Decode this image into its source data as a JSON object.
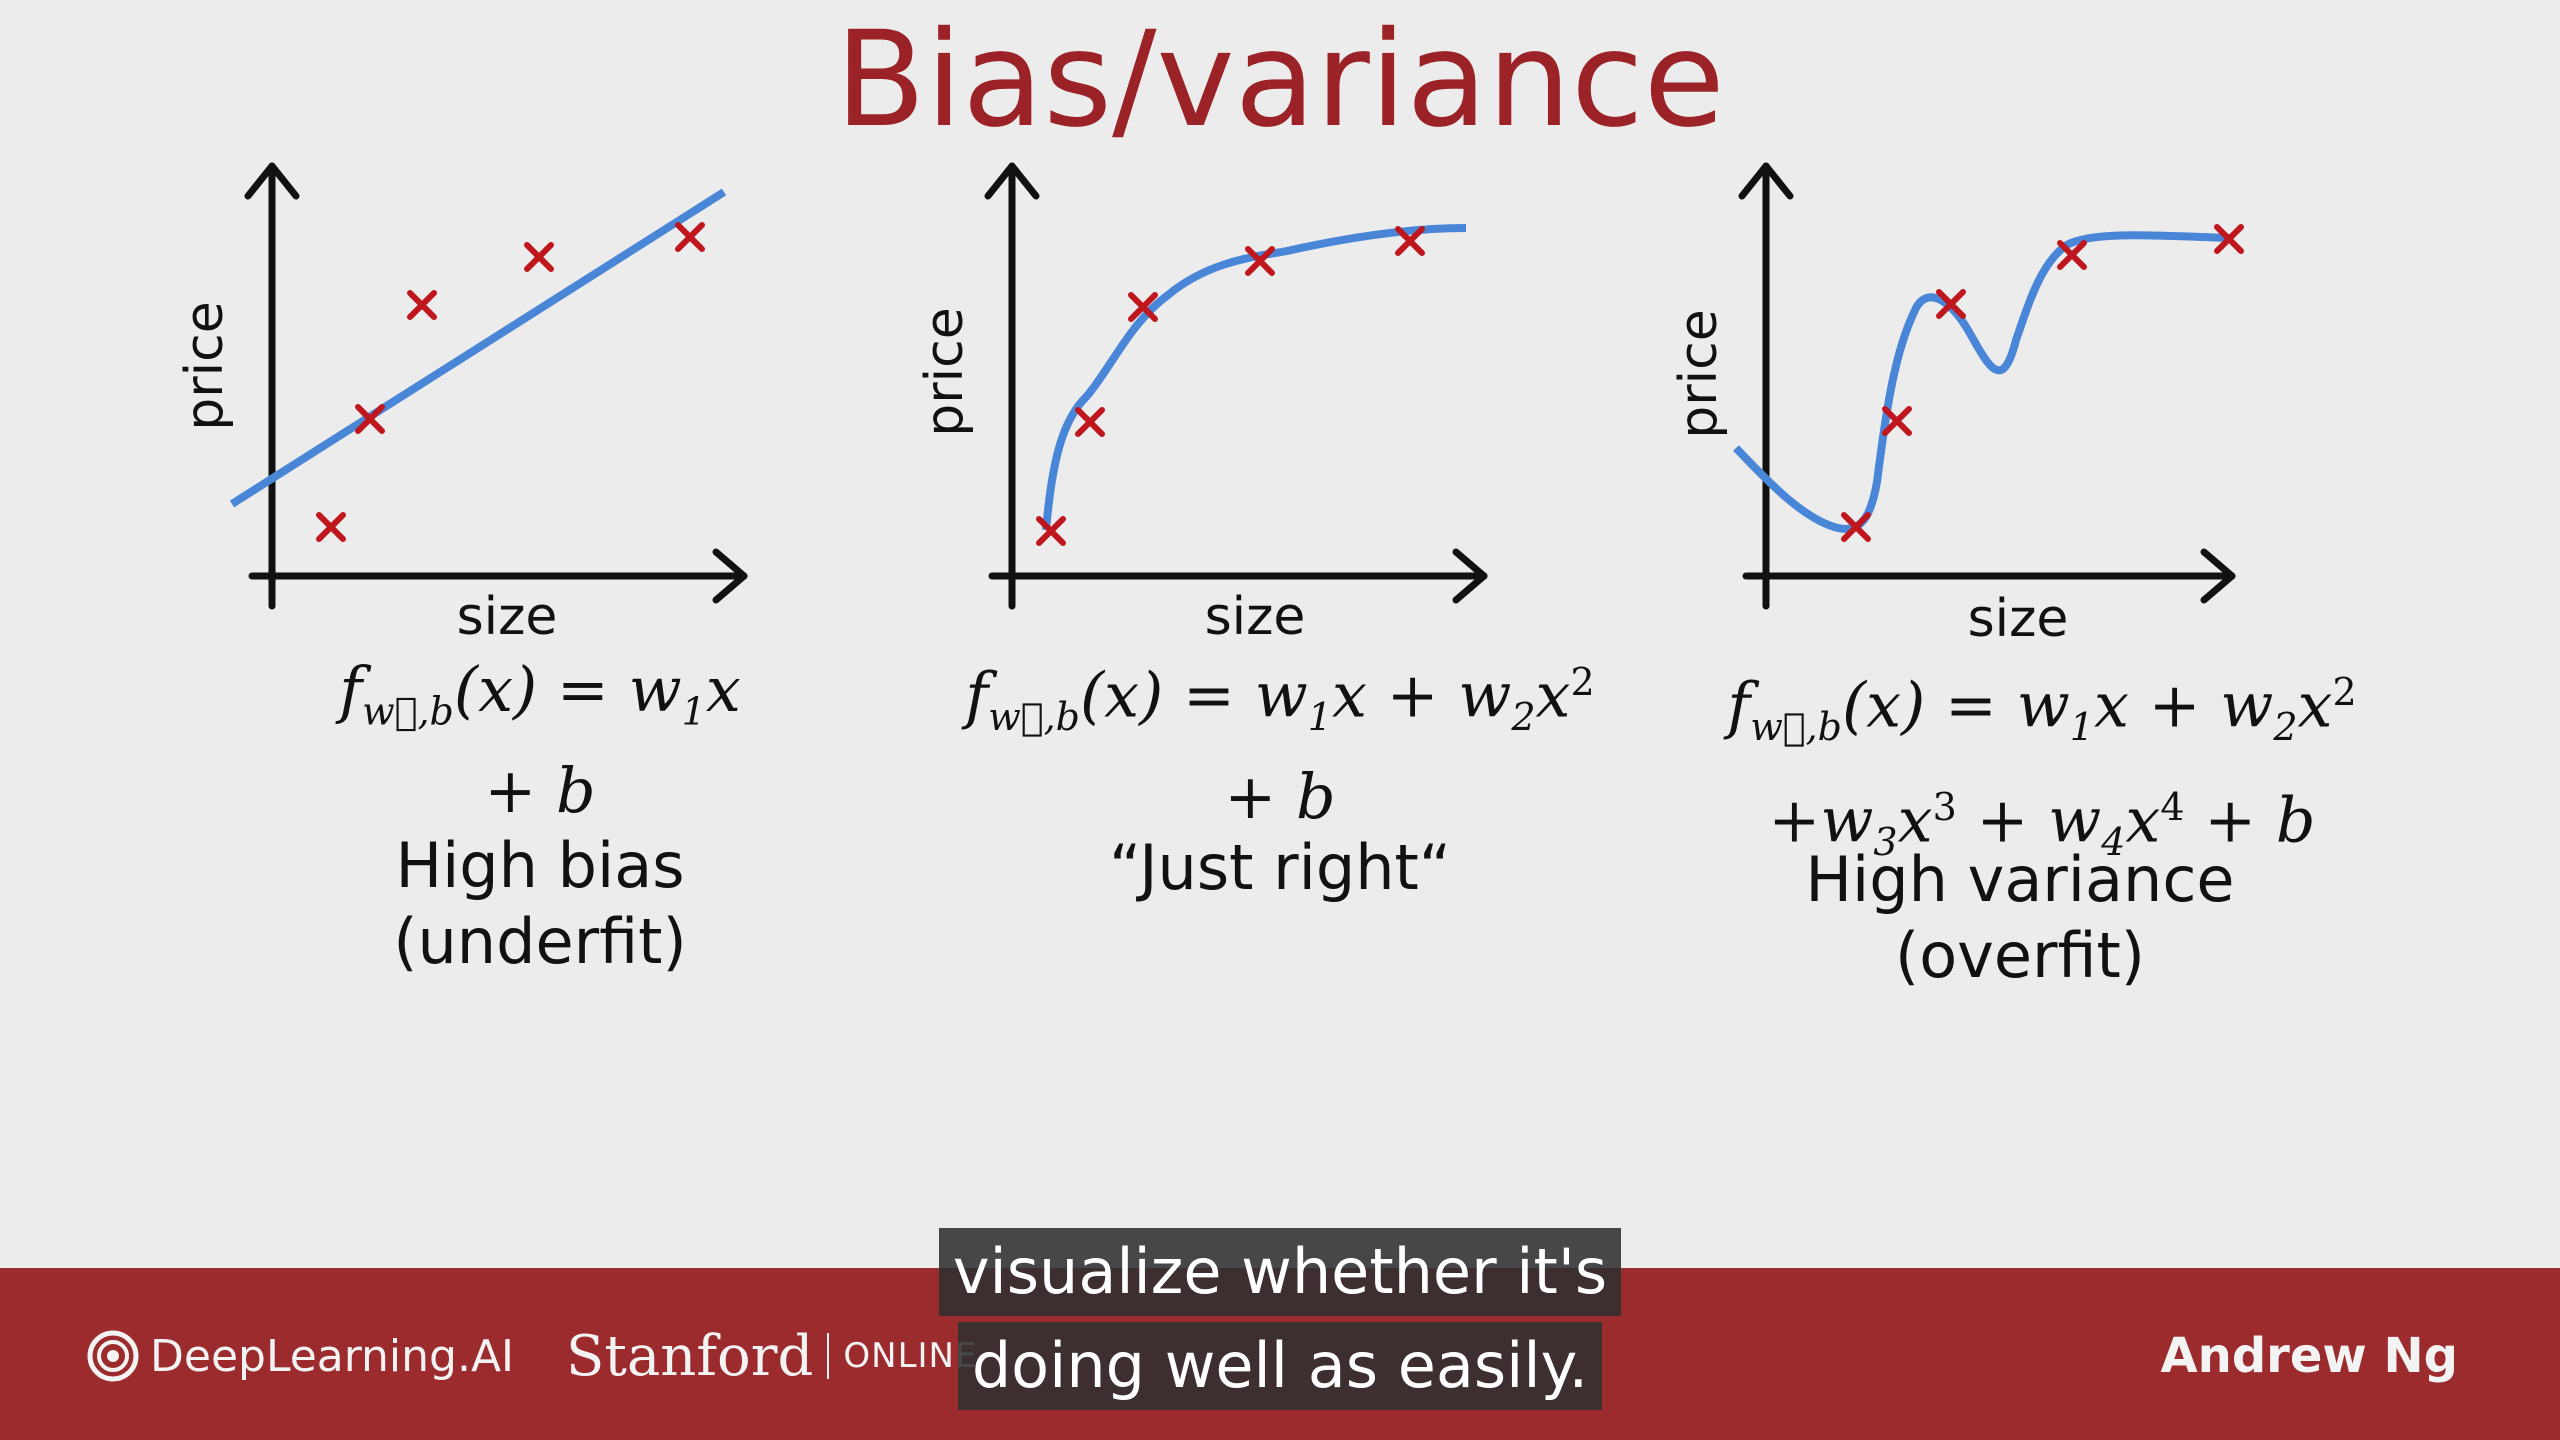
{
  "slide": {
    "title": "Bias/variance"
  },
  "panels": [
    {
      "x_label": "size",
      "y_label": "price",
      "formula_line1": "= w",
      "formula_line2": "+ b",
      "caption_line1": "High bias",
      "caption_line2": "(underfit)"
    },
    {
      "x_label": "size",
      "y_label": "price",
      "formula_line2": "+ b",
      "caption_line1": "“Just right“",
      "caption_line2": ""
    },
    {
      "x_label": "size",
      "y_label": "price",
      "caption_line1": "High variance",
      "caption_line2": "(overfit)"
    }
  ],
  "subtitles": {
    "line1": "visualize whether it's",
    "line2": "doing well as easily."
  },
  "footer": {
    "brand_primary": "DeepLearning.AI",
    "brand_secondary": "Stanford",
    "brand_secondary_suffix": "ONLINE",
    "presenter": "Andrew Ng"
  },
  "colors": {
    "accent": "#9b2226",
    "footer_bg": "#9c2b2e",
    "curve": "#4a86d8",
    "point": "#c0161d"
  },
  "chart_data": [
    {
      "type": "scatter",
      "title": "",
      "xlabel": "size",
      "ylabel": "price",
      "points": [
        [
          1,
          1
        ],
        [
          1.5,
          3
        ],
        [
          2.5,
          5
        ],
        [
          4,
          5.9
        ],
        [
          6,
          6.3
        ]
      ],
      "fit": "linear"
    },
    {
      "type": "scatter",
      "title": "",
      "xlabel": "size",
      "ylabel": "price",
      "points": [
        [
          1,
          1
        ],
        [
          2,
          3.1
        ],
        [
          3,
          5
        ],
        [
          4.5,
          5.7
        ],
        [
          6.5,
          6.1
        ]
      ],
      "fit": "quadratic"
    },
    {
      "type": "scatter",
      "title": "",
      "xlabel": "size",
      "ylabel": "price",
      "points": [
        [
          1.5,
          1
        ],
        [
          2.2,
          3.2
        ],
        [
          2.8,
          5
        ],
        [
          4.5,
          6
        ],
        [
          6.5,
          6.2
        ]
      ],
      "fit": "quartic"
    }
  ]
}
